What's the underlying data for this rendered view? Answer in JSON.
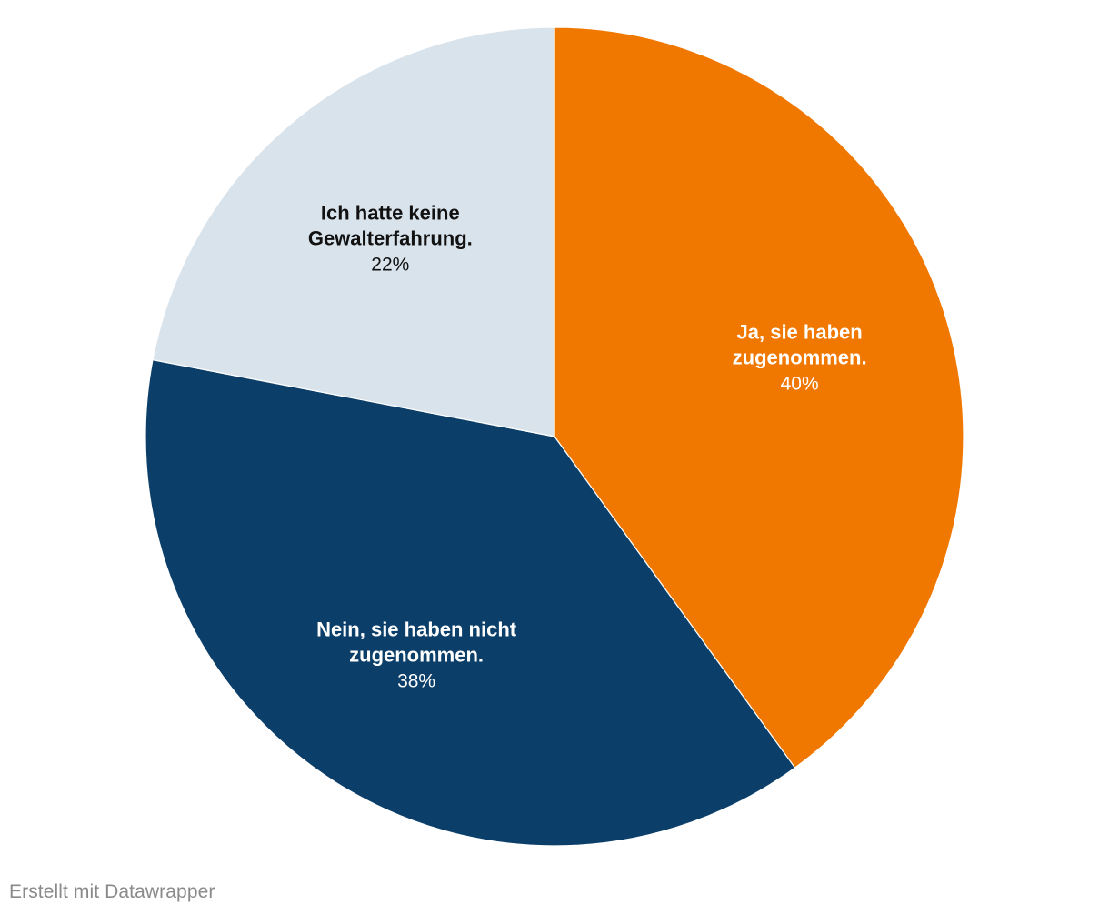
{
  "chart_data": {
    "type": "pie",
    "slices": [
      {
        "label": "Ja, sie haben zugenommen.",
        "label_lines": [
          "Ja, sie haben",
          "zugenommen."
        ],
        "value": 40,
        "value_label": "40%",
        "color": "#f07800",
        "text_color": "#ffffff"
      },
      {
        "label": "Nein, sie haben nicht zugenommen.",
        "label_lines": [
          "Nein, sie haben nicht",
          "zugenommen."
        ],
        "value": 38,
        "value_label": "38%",
        "color": "#0b3f69",
        "text_color": "#ffffff"
      },
      {
        "label": "Ich hatte keine Gewalterfahrung.",
        "label_lines": [
          "Ich hatte keine",
          "Gewalterfahrung."
        ],
        "value": 22,
        "value_label": "22%",
        "color": "#d9e3ec",
        "text_color": "#111111"
      }
    ],
    "start": "12 o'clock",
    "direction": "clockwise",
    "legend": "none, labels on slices"
  },
  "footer": {
    "credit": "Erstellt mit Datawrapper"
  }
}
